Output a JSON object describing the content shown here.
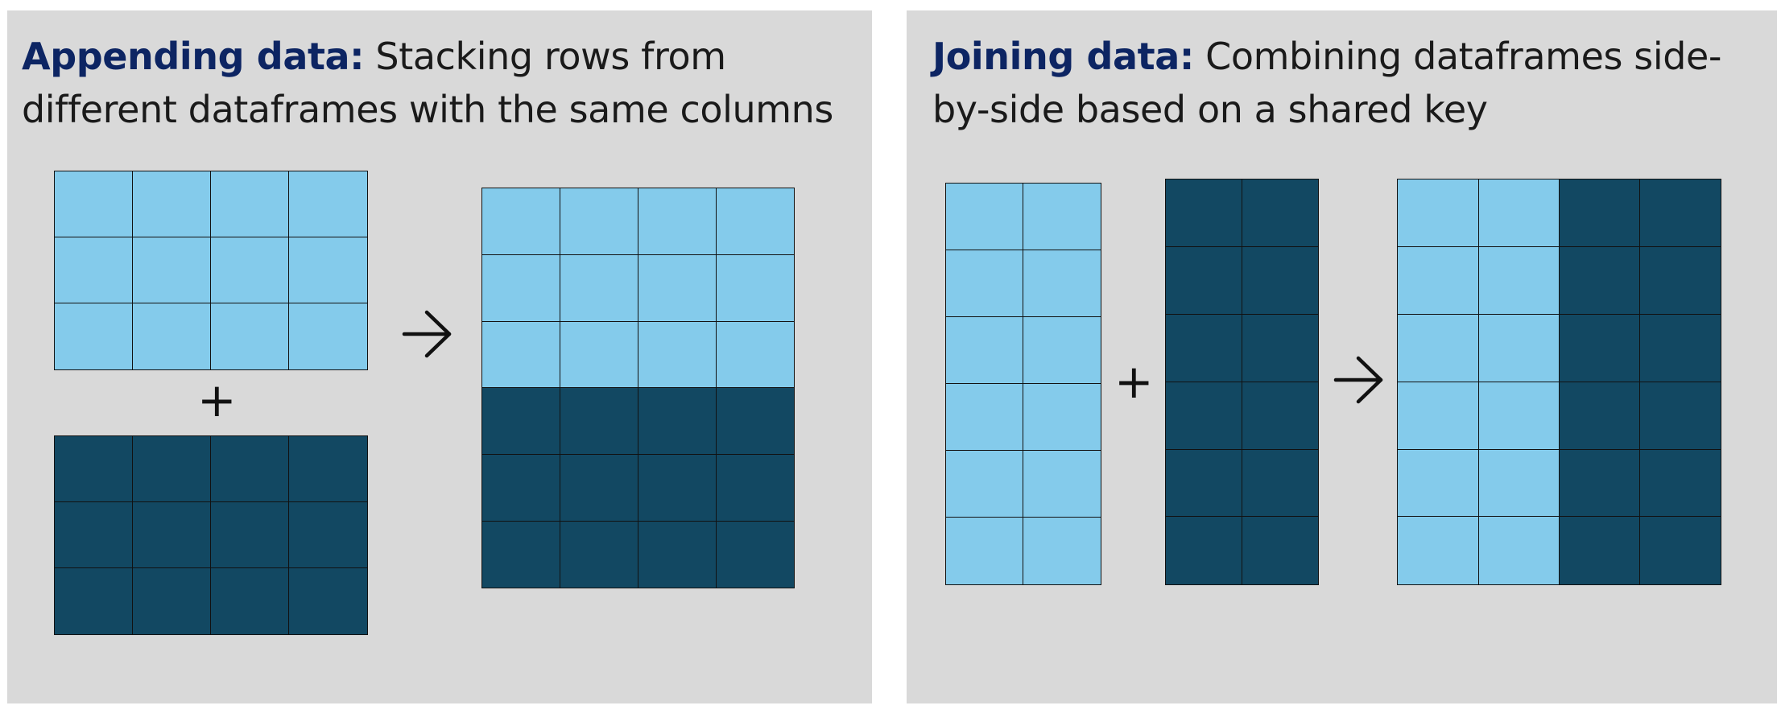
{
  "colors": {
    "panel_bg": "#d9d9d9",
    "light_cell": "#84cbeb",
    "dark_cell": "#124862",
    "heading_emphasis": "#0d2563",
    "stroke": "#111111"
  },
  "appending": {
    "title_bold": "Appending data:",
    "title_line1_rest": " Stacking rows from",
    "title_line2": "different dataframes with the same columns",
    "plus": "+",
    "top_table": {
      "rows": 3,
      "cols": 4,
      "fill": "light"
    },
    "bottom_table": {
      "rows": 3,
      "cols": 4,
      "fill": "dark"
    },
    "result_table": {
      "rows": 6,
      "cols": 4,
      "light_rows": 3,
      "dark_rows": 3
    }
  },
  "joining": {
    "title_bold": "Joining data:",
    "title_line1_rest": " Combining dataframes side-",
    "title_line2": "by-side based on a shared key",
    "plus": "+",
    "left_table": {
      "rows": 6,
      "cols": 2,
      "fill": "light"
    },
    "right_table": {
      "rows": 6,
      "cols": 2,
      "fill": "dark"
    },
    "result_table": {
      "rows": 6,
      "cols": 4,
      "light_cols": 2,
      "dark_cols": 2
    }
  }
}
